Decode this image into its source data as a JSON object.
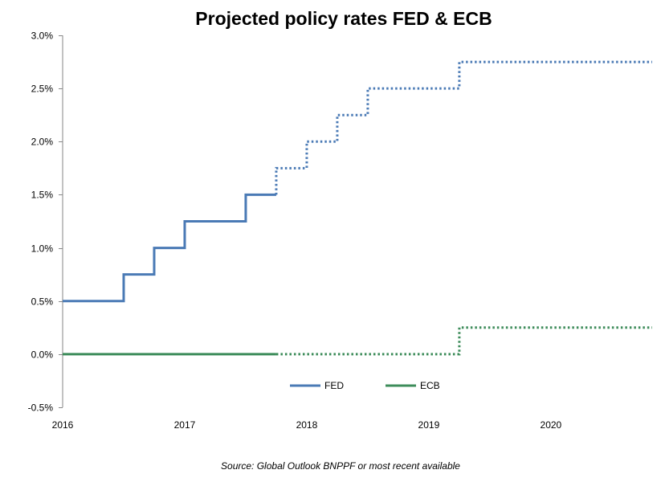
{
  "chart_data": {
    "type": "line",
    "title": "Projected policy rates FED & ECB",
    "source": "Source: Global Outlook BNPPF or most recent available",
    "xlabel": "",
    "ylabel": "",
    "xlim": [
      2016,
      2020.83
    ],
    "ylim": [
      -0.5,
      3.0
    ],
    "y_ticks": [
      -0.5,
      0.0,
      0.5,
      1.0,
      1.5,
      2.0,
      2.5,
      3.0
    ],
    "y_tick_labels": [
      "-0.5%",
      "0.0%",
      "0.5%",
      "1.0%",
      "1.5%",
      "2.0%",
      "2.5%",
      "3.0%"
    ],
    "x_ticks": [
      2016,
      2017,
      2018,
      2019,
      2020
    ],
    "x_tick_labels": [
      "2016",
      "2017",
      "2018",
      "2019",
      "2020"
    ],
    "grid": false,
    "legend_position": "bottom-center",
    "series": [
      {
        "name": "FED",
        "color": "#4a7ab5",
        "step": true,
        "actual": [
          [
            2016.0,
            0.5
          ],
          [
            2016.5,
            0.75
          ],
          [
            2016.75,
            1.0
          ],
          [
            2017.0,
            1.25
          ],
          [
            2017.5,
            1.5
          ],
          [
            2017.75,
            1.5
          ]
        ],
        "projected": [
          [
            2017.75,
            1.75
          ],
          [
            2018.0,
            2.0
          ],
          [
            2018.25,
            2.25
          ],
          [
            2018.5,
            2.5
          ],
          [
            2019.25,
            2.75
          ],
          [
            2020.83,
            2.75
          ]
        ]
      },
      {
        "name": "ECB",
        "color": "#3d8c5a",
        "step": true,
        "actual": [
          [
            2016.0,
            0.0
          ],
          [
            2017.75,
            0.0
          ]
        ],
        "projected": [
          [
            2017.75,
            0.0
          ],
          [
            2019.25,
            0.25
          ],
          [
            2020.83,
            0.25
          ]
        ]
      }
    ]
  }
}
